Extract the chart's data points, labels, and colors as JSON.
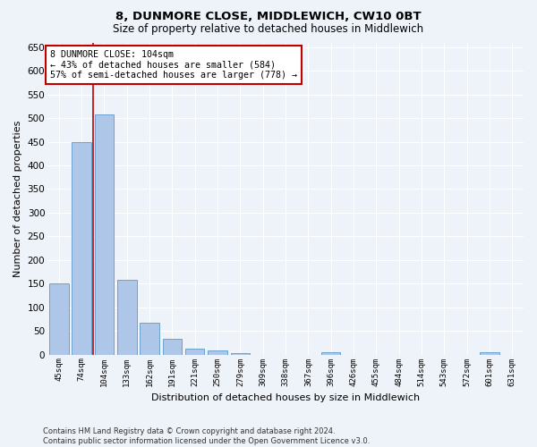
{
  "title1": "8, DUNMORE CLOSE, MIDDLEWICH, CW10 0BT",
  "title2": "Size of property relative to detached houses in Middlewich",
  "xlabel": "Distribution of detached houses by size in Middlewich",
  "ylabel": "Number of detached properties",
  "categories": [
    "45sqm",
    "74sqm",
    "104sqm",
    "133sqm",
    "162sqm",
    "191sqm",
    "221sqm",
    "250sqm",
    "279sqm",
    "309sqm",
    "338sqm",
    "367sqm",
    "396sqm",
    "426sqm",
    "455sqm",
    "484sqm",
    "514sqm",
    "543sqm",
    "572sqm",
    "601sqm",
    "631sqm"
  ],
  "values": [
    150,
    450,
    508,
    159,
    68,
    33,
    13,
    8,
    4,
    0,
    0,
    0,
    5,
    0,
    0,
    0,
    0,
    0,
    0,
    5,
    0
  ],
  "bar_color": "#aec6e8",
  "bar_edge_color": "#5a9ac9",
  "highlight_index": 2,
  "highlight_color": "#c00000",
  "ylim": [
    0,
    660
  ],
  "yticks": [
    0,
    50,
    100,
    150,
    200,
    250,
    300,
    350,
    400,
    450,
    500,
    550,
    600,
    650
  ],
  "annotation_text": "8 DUNMORE CLOSE: 104sqm\n← 43% of detached houses are smaller (584)\n57% of semi-detached houses are larger (778) →",
  "annotation_box_color": "#ffffff",
  "annotation_box_edge": "#c00000",
  "footer": "Contains HM Land Registry data © Crown copyright and database right 2024.\nContains public sector information licensed under the Open Government Licence v3.0.",
  "background_color": "#eef2f9",
  "grid_color": "#ffffff"
}
